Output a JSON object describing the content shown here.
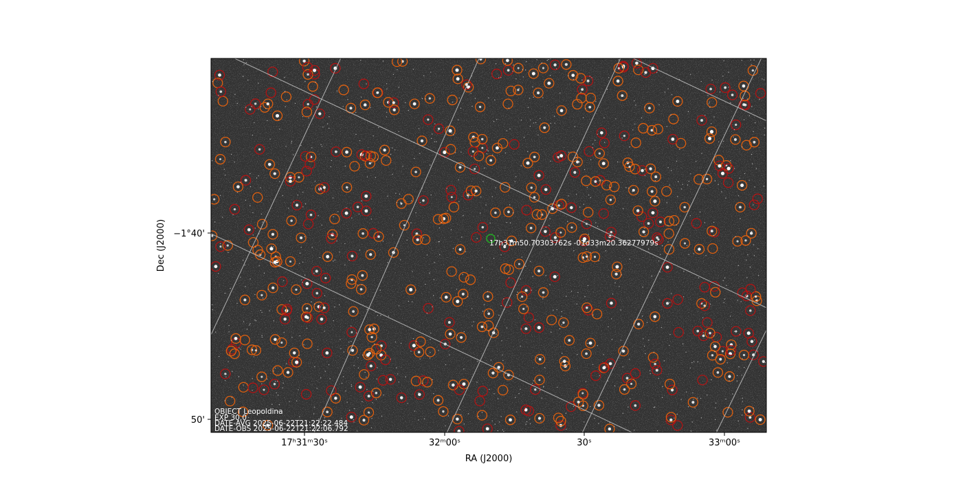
{
  "plot": {
    "x_axis_label": "RA (J2000)",
    "y_axis_label": "Dec (J2000)",
    "x_tick_labels": [
      "17ʰ31ᵐ30ˢ",
      "32ᵐ00ˢ",
      "30ˢ",
      "33ᵐ00ˢ"
    ],
    "y_tick_labels": [
      "−1°40'",
      "50'"
    ],
    "target_label": "17h31m50.70303762s -01d33m20.36277979s",
    "header_lines": [
      "OBJECT Leopoldina",
      "EXP 30.0",
      "DATE-AVG 2025-06-22T21:22:22.484",
      "DATE-OBS 2025-06-22T21:22:06.792"
    ]
  }
}
